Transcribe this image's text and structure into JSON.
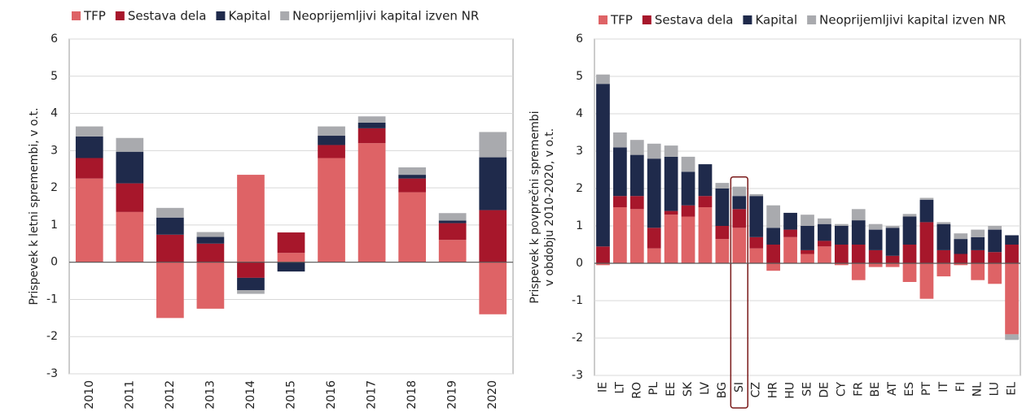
{
  "chart_data": [
    {
      "type": "bar",
      "stacked": true,
      "legend": "top",
      "grid": true,
      "ylabel": [
        "Prispevek k letni spremembi, v o.t."
      ],
      "categories": [
        "2010",
        "2011",
        "2012",
        "2013",
        "2014",
        "2015",
        "2016",
        "2017",
        "2018",
        "2019",
        "2020"
      ],
      "ylim": [
        -3,
        6
      ],
      "yticks": [
        -3,
        -2,
        -1,
        0,
        1,
        2,
        3,
        4,
        5,
        6
      ],
      "series": [
        {
          "name": "TFP",
          "color": "#de6366",
          "values": [
            2.25,
            1.35,
            -1.5,
            -1.25,
            2.35,
            0.25,
            2.8,
            3.2,
            1.88,
            0.6,
            -1.4
          ]
        },
        {
          "name": "Sestava dela",
          "color": "#a7172b",
          "values": [
            0.55,
            0.77,
            0.74,
            0.5,
            -0.42,
            0.55,
            0.35,
            0.4,
            0.37,
            0.45,
            1.4
          ]
        },
        {
          "name": "Kapital",
          "color": "#1f2a4b",
          "values": [
            0.58,
            0.85,
            0.46,
            0.18,
            -0.33,
            -0.25,
            0.25,
            0.15,
            0.1,
            0.07,
            1.42
          ]
        },
        {
          "name": "Neoprijemljivi kapital izven NR",
          "color": "#a9aaae",
          "values": [
            0.27,
            0.37,
            0.26,
            0.13,
            -0.1,
            0,
            0.25,
            0.17,
            0.2,
            0.2,
            0.68
          ]
        }
      ]
    },
    {
      "type": "bar",
      "stacked": true,
      "legend": "top",
      "grid": true,
      "highlight": "SI",
      "ylabel": [
        "Prispevek k povprečni spremembi",
        "v obdobju 2010-2020, v o.t."
      ],
      "categories": [
        "IE",
        "LT",
        "RO",
        "PL",
        "EE",
        "SK",
        "LV",
        "BG",
        "SI",
        "CZ",
        "HR",
        "HU",
        "SE",
        "DE",
        "CY",
        "FR",
        "BE",
        "AT",
        "ES",
        "PT",
        "IT",
        "FI",
        "NL",
        "LU",
        "EL"
      ],
      "ylim": [
        -3,
        6
      ],
      "yticks": [
        -3,
        -2,
        -1,
        0,
        1,
        2,
        3,
        4,
        5,
        6
      ],
      "series": [
        {
          "name": "TFP",
          "color": "#de6366",
          "values": [
            -0.05,
            1.5,
            1.45,
            0.4,
            1.3,
            1.25,
            1.5,
            0.65,
            0.95,
            0.4,
            -0.2,
            0.7,
            0.25,
            0.45,
            -0.05,
            -0.45,
            -0.1,
            -0.1,
            -0.5,
            -0.95,
            -0.35,
            -0.05,
            -0.45,
            -0.55,
            -1.9
          ]
        },
        {
          "name": "Sestava dela",
          "color": "#a7172b",
          "values": [
            0.45,
            0.3,
            0.35,
            0.55,
            0.1,
            0.3,
            0.3,
            0.35,
            0.5,
            0.3,
            0.5,
            0.2,
            0.1,
            0.15,
            0.5,
            0.5,
            0.35,
            0.2,
            0.5,
            1.1,
            0.35,
            0.25,
            0.35,
            0.3,
            0.5
          ]
        },
        {
          "name": "Kapital",
          "color": "#1f2a4b",
          "values": [
            4.35,
            1.3,
            1.1,
            1.85,
            1.45,
            0.9,
            0.85,
            1.0,
            0.35,
            1.1,
            0.45,
            0.45,
            0.65,
            0.45,
            0.5,
            0.65,
            0.55,
            0.75,
            0.75,
            0.6,
            0.7,
            0.4,
            0.35,
            0.6,
            0.25
          ]
        },
        {
          "name": "Neoprijemljivi kapital izven NR",
          "color": "#a9aaae",
          "values": [
            0.25,
            0.4,
            0.4,
            0.4,
            0.3,
            0.4,
            0,
            0.15,
            0.25,
            0.05,
            0.6,
            0,
            0.3,
            0.15,
            0.05,
            0.3,
            0.15,
            0.05,
            0.07,
            0.05,
            0.05,
            0.15,
            0.2,
            0.1,
            -0.15
          ]
        }
      ]
    }
  ]
}
